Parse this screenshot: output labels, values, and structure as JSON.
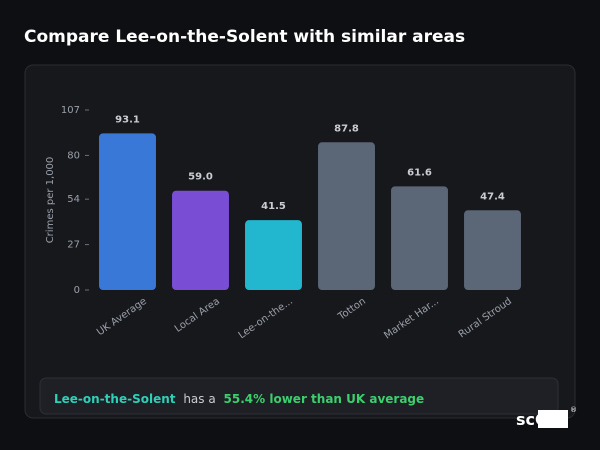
{
  "header": {
    "title": "Compare Lee-on-the-Solent with similar areas"
  },
  "chart_data": {
    "type": "bar",
    "y_label": "Crimes per 1,000",
    "categories": [
      "UK Average",
      "Local Area",
      "Lee-on-the...",
      "Totton",
      "Market Har...",
      "Rural Stroud"
    ],
    "values": [
      93.1,
      59.0,
      41.5,
      87.8,
      61.6,
      47.4
    ],
    "value_labels": [
      "93.1",
      "59.0",
      "41.5",
      "87.8",
      "61.6",
      "47.4"
    ],
    "colors": [
      "#3a78d8",
      "#7a4ed4",
      "#22b7cf",
      "#5b6677",
      "#5b6677",
      "#5b6677"
    ],
    "ylim": [
      0,
      107
    ],
    "yticks": [
      0,
      27,
      54,
      80,
      107
    ]
  },
  "insight": {
    "area": "Lee-on-the-Solent",
    "connector": "has a",
    "highlight": "55.4% lower than UK average"
  },
  "brand": {
    "name": "scOS",
    "mark": "®"
  }
}
